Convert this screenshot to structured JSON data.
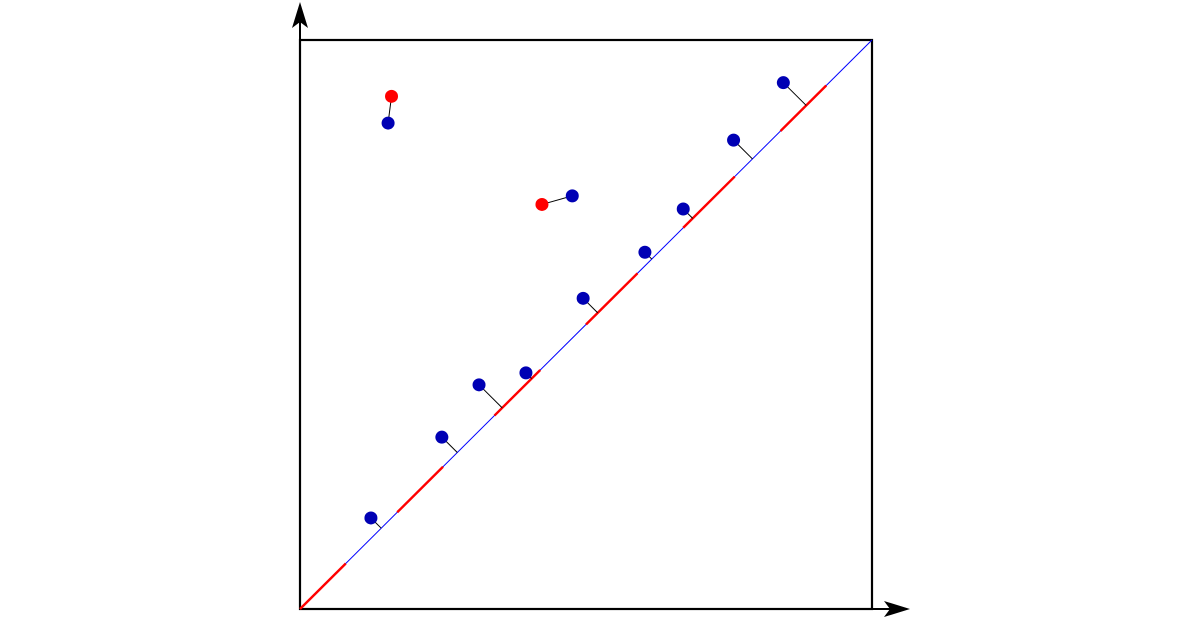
{
  "diagram": {
    "type": "persistence-diagram-matching",
    "axes": {
      "x_arrow": true,
      "y_arrow": true,
      "tick_labels": false,
      "axis_labels": false
    },
    "domain": {
      "x": [
        0,
        1
      ],
      "y": [
        0,
        1
      ]
    },
    "colors": {
      "frame": "#000000",
      "diagonal": "#0000ff",
      "diagonal_highlight": "#ff0000",
      "point_blue": "#0000b4",
      "point_red": "#ff0000",
      "matching_line": "#000000"
    },
    "points_matched_to_points": [
      {
        "blue": [
          0.154,
          0.854
        ],
        "red": [
          0.16,
          0.901
        ]
      },
      {
        "blue": [
          0.476,
          0.726
        ],
        "red": [
          0.423,
          0.711
        ]
      }
    ],
    "points_matched_to_diagonal": [
      {
        "point": [
          0.124,
          0.16
        ]
      },
      {
        "point": [
          0.248,
          0.302
        ]
      },
      {
        "point": [
          0.313,
          0.394
        ]
      },
      {
        "point": [
          0.395,
          0.415
        ]
      },
      {
        "point": [
          0.495,
          0.546
        ]
      },
      {
        "point": [
          0.603,
          0.627
        ]
      },
      {
        "point": [
          0.67,
          0.703
        ]
      },
      {
        "point": [
          0.758,
          0.824
        ]
      },
      {
        "point": [
          0.845,
          0.925
        ]
      }
    ],
    "diagonal_highlight_segments": [
      [
        0.0,
        0.08
      ],
      [
        0.17,
        0.25
      ],
      [
        0.34,
        0.42
      ],
      [
        0.5,
        0.59
      ],
      [
        0.67,
        0.76
      ],
      [
        0.84,
        0.92
      ]
    ]
  }
}
